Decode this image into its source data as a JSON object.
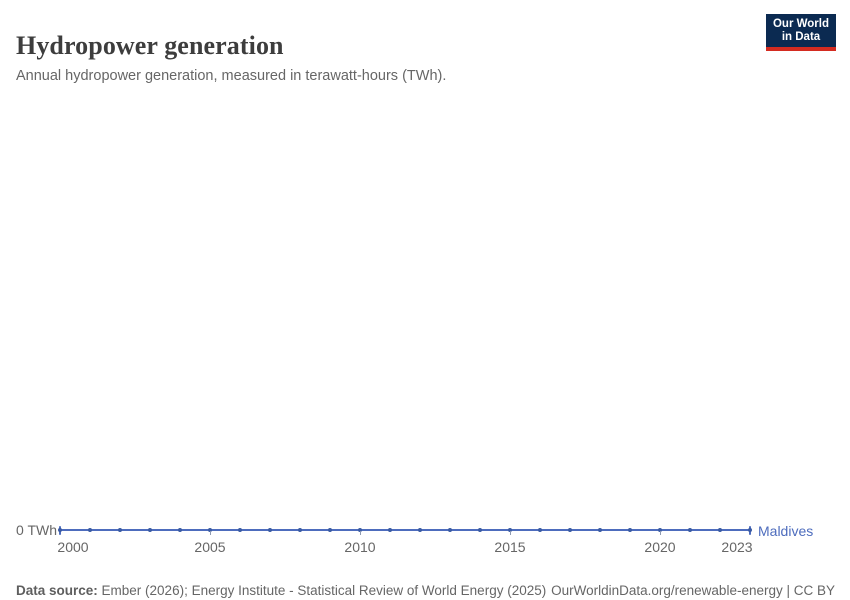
{
  "header": {
    "title": "Hydropower generation",
    "subtitle": "Annual hydropower generation, measured in terawatt-hours (TWh).",
    "logo": {
      "line1": "Our World",
      "line2": "in Data"
    }
  },
  "chart_data": {
    "type": "line",
    "title": "Hydropower generation",
    "subtitle": "Annual hydropower generation, measured in terawatt-hours (TWh).",
    "unit": "TWh",
    "x": [
      2000,
      2001,
      2002,
      2003,
      2004,
      2005,
      2006,
      2007,
      2008,
      2009,
      2010,
      2011,
      2012,
      2013,
      2014,
      2015,
      2016,
      2017,
      2018,
      2019,
      2020,
      2021,
      2022,
      2023
    ],
    "series": [
      {
        "name": "Maldives",
        "values": [
          0,
          0,
          0,
          0,
          0,
          0,
          0,
          0,
          0,
          0,
          0,
          0,
          0,
          0,
          0,
          0,
          0,
          0,
          0,
          0,
          0,
          0,
          0,
          0
        ],
        "color": "#4d6cbd",
        "marker_color": "#3a5ba3"
      }
    ],
    "x_ticks": [
      2000,
      2005,
      2010,
      2015,
      2020,
      2023
    ],
    "y_ticks": [
      "0 TWh"
    ],
    "xlim": [
      2000,
      2023
    ],
    "ylim": [
      0,
      1
    ],
    "grid": false,
    "legend_position": "end-of-line"
  },
  "axis": {
    "y_zero_label": "0 TWh"
  },
  "footer": {
    "datasource_label": "Data source:",
    "datasource_text": " Ember (2026); Energy Institute - Statistical Review of World Energy (2025)",
    "credit": "OurWorldinData.org/renewable-energy | CC BY"
  },
  "colors": {
    "line": "#4d6cbd",
    "marker": "#3a5ba3",
    "logo_navy": "#0b2a51",
    "logo_red": "#d42b20",
    "text_gray": "#666666",
    "title_gray": "#3d3d3d"
  }
}
